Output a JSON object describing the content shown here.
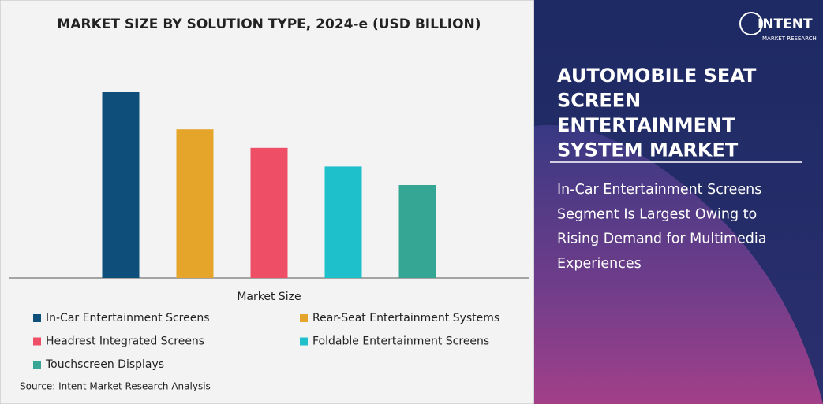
{
  "chart_data": {
    "type": "bar",
    "title": "MARKET SIZE BY SOLUTION TYPE, 2024-e (USD BILLION)",
    "x_label": "Market Size",
    "categories": [
      "In-Car Entertainment Screens",
      "Rear-Seat Entertainment Systems",
      "Headrest Integrated Screens",
      "Foldable Entertainment Screens",
      "Touchscreen Displays"
    ],
    "values": [
      10,
      8,
      7,
      6,
      5
    ],
    "colors": [
      "#0d4f7a",
      "#e5a52b",
      "#ef4f66",
      "#1ec0cc",
      "#35a594"
    ],
    "ylim": [
      0,
      12.5
    ]
  },
  "source": "Source: Intent Market Research Analysis",
  "logo": {
    "name": "INTENT",
    "tagline": "MARKET RESEARCH"
  },
  "panel": {
    "heading_lines": [
      "AUTOMOBILE SEAT",
      "SCREEN",
      "ENTERTAINMENT",
      "SYSTEM MARKET"
    ],
    "text_lines": [
      "In-Car Entertainment Screens",
      "Segment Is Largest Owing to",
      "Rising Demand for Multimedia",
      "Experiences"
    ]
  }
}
